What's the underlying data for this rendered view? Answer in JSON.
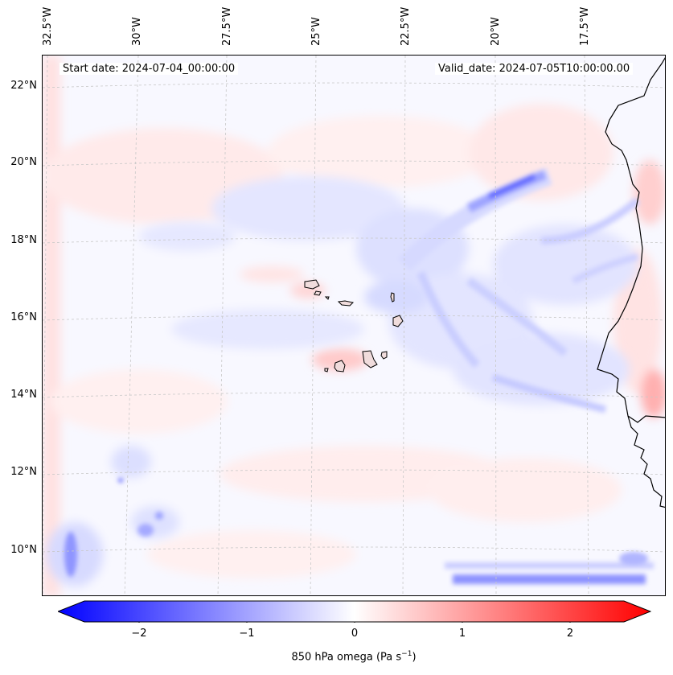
{
  "map": {
    "start_date": "Start date: 2024-07-04_00:00:00",
    "valid_date": "Valid_date: 2024-07-05T10:00:00.00",
    "lon_labels": [
      "32.5°W",
      "30°W",
      "27.5°W",
      "25°W",
      "22.5°W",
      "20°W",
      "17.5°W"
    ],
    "lat_labels": [
      "22°N",
      "20°N",
      "18°N",
      "16°N",
      "14°N",
      "12°N",
      "10°N"
    ],
    "colors": {
      "negative": "#0000ff",
      "zero": "#ffffff",
      "positive": "#ff0000",
      "coast": "#000000"
    }
  },
  "colorbar": {
    "label": "850 hPa omega (Pa s",
    "label_sup": "−1",
    "label_end": ")",
    "ticks": [
      "−2",
      "−1",
      "0",
      "1",
      "2"
    ],
    "range": [
      -2.5,
      2.5
    ]
  }
}
